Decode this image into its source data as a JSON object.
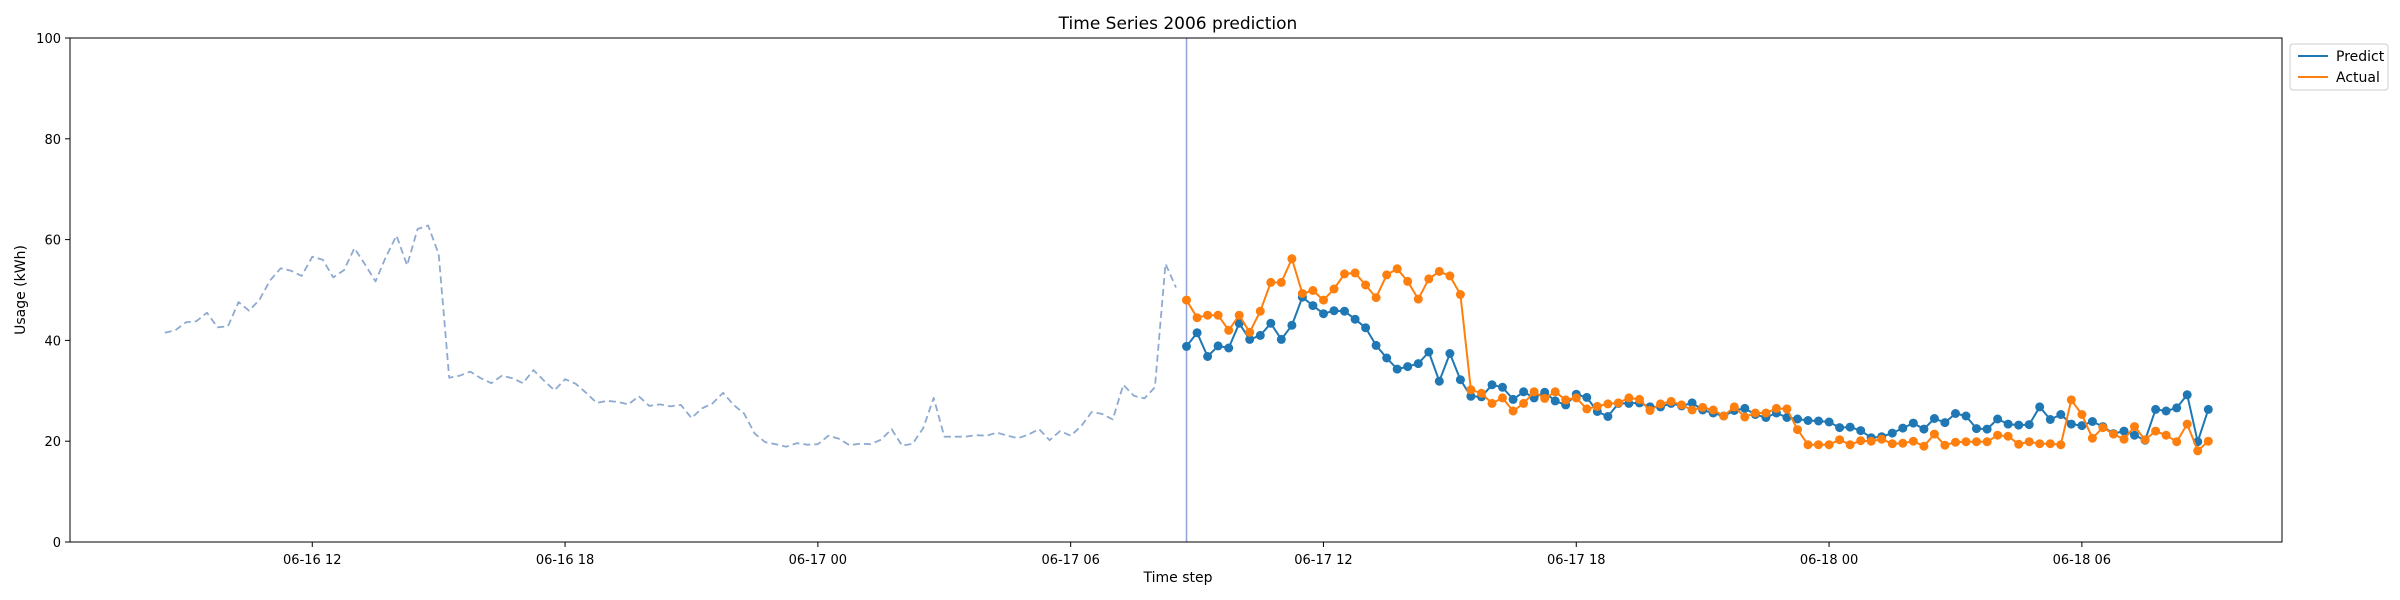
{
  "chart_data": {
    "type": "line",
    "title": "Time Series 2006 prediction",
    "xlabel": "Time step",
    "ylabel": "Usage (kWh)",
    "ylim": [
      0,
      100
    ],
    "yticks": [
      0,
      20,
      40,
      60,
      80,
      100
    ],
    "xlim": [
      "2006-06-16 06:15",
      "2006-06-18 10:45"
    ],
    "xticks": [
      {
        "label": "06-16 12",
        "t": "2006-06-16 12:00"
      },
      {
        "label": "06-16 18",
        "t": "2006-06-16 18:00"
      },
      {
        "label": "06-17 00",
        "t": "2006-06-17 00:00"
      },
      {
        "label": "06-17 06",
        "t": "2006-06-17 06:00"
      },
      {
        "label": "06-17 12",
        "t": "2006-06-17 12:00"
      },
      {
        "label": "06-17 18",
        "t": "2006-06-17 18:00"
      },
      {
        "label": "06-18 00",
        "t": "2006-06-18 00:00"
      },
      {
        "label": "06-18 06",
        "t": "2006-06-18 06:00"
      }
    ],
    "grid": false,
    "legend_position": "outside top-right",
    "forecast_start": "2006-06-17 08:45",
    "interval_minutes": 15,
    "history": {
      "start": "2006-06-16 08:30",
      "color": "#8eaad0",
      "style": "dashed",
      "values": [
        41.5,
        42.0,
        43.6,
        43.8,
        45.5,
        42.6,
        42.8,
        47.6,
        45.9,
        48.1,
        51.9,
        54.3,
        53.8,
        52.8,
        56.6,
        56.0,
        52.5,
        53.9,
        58.3,
        55.1,
        51.7,
        56.6,
        60.8,
        54.9,
        62.1,
        62.8,
        57.1,
        32.6,
        33.0,
        33.8,
        32.5,
        31.5,
        33.0,
        32.5,
        31.5,
        34.1,
        32.0,
        30.1,
        32.3,
        31.4,
        29.6,
        27.6,
        28.0,
        27.8,
        27.3,
        28.9,
        27.0,
        27.3,
        26.9,
        27.2,
        24.6,
        26.5,
        27.5,
        29.6,
        27.2,
        25.5,
        21.5,
        19.8,
        19.4,
        18.9,
        19.6,
        19.3,
        19.4,
        21.1,
        20.5,
        19.2,
        19.5,
        19.4,
        20.3,
        22.4,
        19.1,
        19.5,
        22.6,
        28.6,
        20.9,
        20.9,
        20.9,
        21.2,
        21.1,
        21.7,
        21.1,
        20.6,
        21.3,
        22.4,
        20.2,
        22.0,
        21.1,
        23.0,
        25.8,
        25.4,
        24.3,
        31.2,
        29.0,
        28.5,
        30.7,
        55.2,
        50.5
      ]
    },
    "series": [
      {
        "name": "Predict",
        "color": "#1f77b4",
        "start": "2006-06-17 08:45",
        "values": [
          38.8,
          41.5,
          36.8,
          38.9,
          38.5,
          43.4,
          40.2,
          41.0,
          43.4,
          40.2,
          43.0,
          48.6,
          46.9,
          45.3,
          45.9,
          45.8,
          44.2,
          42.5,
          39.0,
          36.5,
          34.3,
          34.8,
          35.4,
          37.7,
          31.9,
          37.4,
          32.2,
          28.9,
          28.8,
          31.2,
          30.7,
          28.3,
          29.8,
          28.6,
          29.7,
          28.0,
          27.2,
          29.3,
          28.7,
          25.9,
          24.9,
          27.5,
          27.5,
          27.6,
          26.8,
          26.8,
          27.5,
          27.0,
          27.6,
          26.2,
          25.6,
          25.0,
          26.1,
          26.5,
          25.3,
          24.7,
          25.6,
          24.7,
          24.4,
          24.1,
          24.0,
          23.8,
          22.7,
          22.8,
          22.1,
          20.7,
          20.9,
          21.6,
          22.6,
          23.6,
          22.4,
          24.5,
          23.7,
          25.5,
          25.0,
          22.5,
          22.4,
          24.4,
          23.4,
          23.2,
          23.3,
          26.8,
          24.3,
          25.3,
          23.4,
          23.1,
          23.9,
          22.9,
          21.5,
          22.0,
          21.2,
          20.2,
          26.3,
          26.0,
          26.6,
          29.2,
          19.9,
          26.3
        ]
      },
      {
        "name": "Actual",
        "color": "#ff7f0e",
        "start": "2006-06-17 08:45",
        "values": [
          48.0,
          44.5,
          45.0,
          45.0,
          42.0,
          45.0,
          41.6,
          45.8,
          51.5,
          51.5,
          56.2,
          49.3,
          49.9,
          48.0,
          50.2,
          53.2,
          53.4,
          51.0,
          48.5,
          53.0,
          54.2,
          51.7,
          48.2,
          52.2,
          53.7,
          52.8,
          49.1,
          30.2,
          29.5,
          27.5,
          28.6,
          26.0,
          27.5,
          29.8,
          28.5,
          29.8,
          28.2,
          28.6,
          26.4,
          26.9,
          27.4,
          27.6,
          28.6,
          28.3,
          26.1,
          27.4,
          27.9,
          27.2,
          26.2,
          26.7,
          26.2,
          25.0,
          26.8,
          24.8,
          25.6,
          25.6,
          26.5,
          26.4,
          22.3,
          19.3,
          19.3,
          19.3,
          20.3,
          19.3,
          20.1,
          20.0,
          20.4,
          19.5,
          19.6,
          20.0,
          19.0,
          21.4,
          19.2,
          19.8,
          19.9,
          19.9,
          19.9,
          21.2,
          21.0,
          19.4,
          19.9,
          19.5,
          19.5,
          19.3,
          28.2,
          25.3,
          20.6,
          22.7,
          21.4,
          20.4,
          22.9,
          20.3,
          22.0,
          21.2,
          19.9,
          23.4,
          18.1,
          20.0
        ]
      }
    ]
  }
}
